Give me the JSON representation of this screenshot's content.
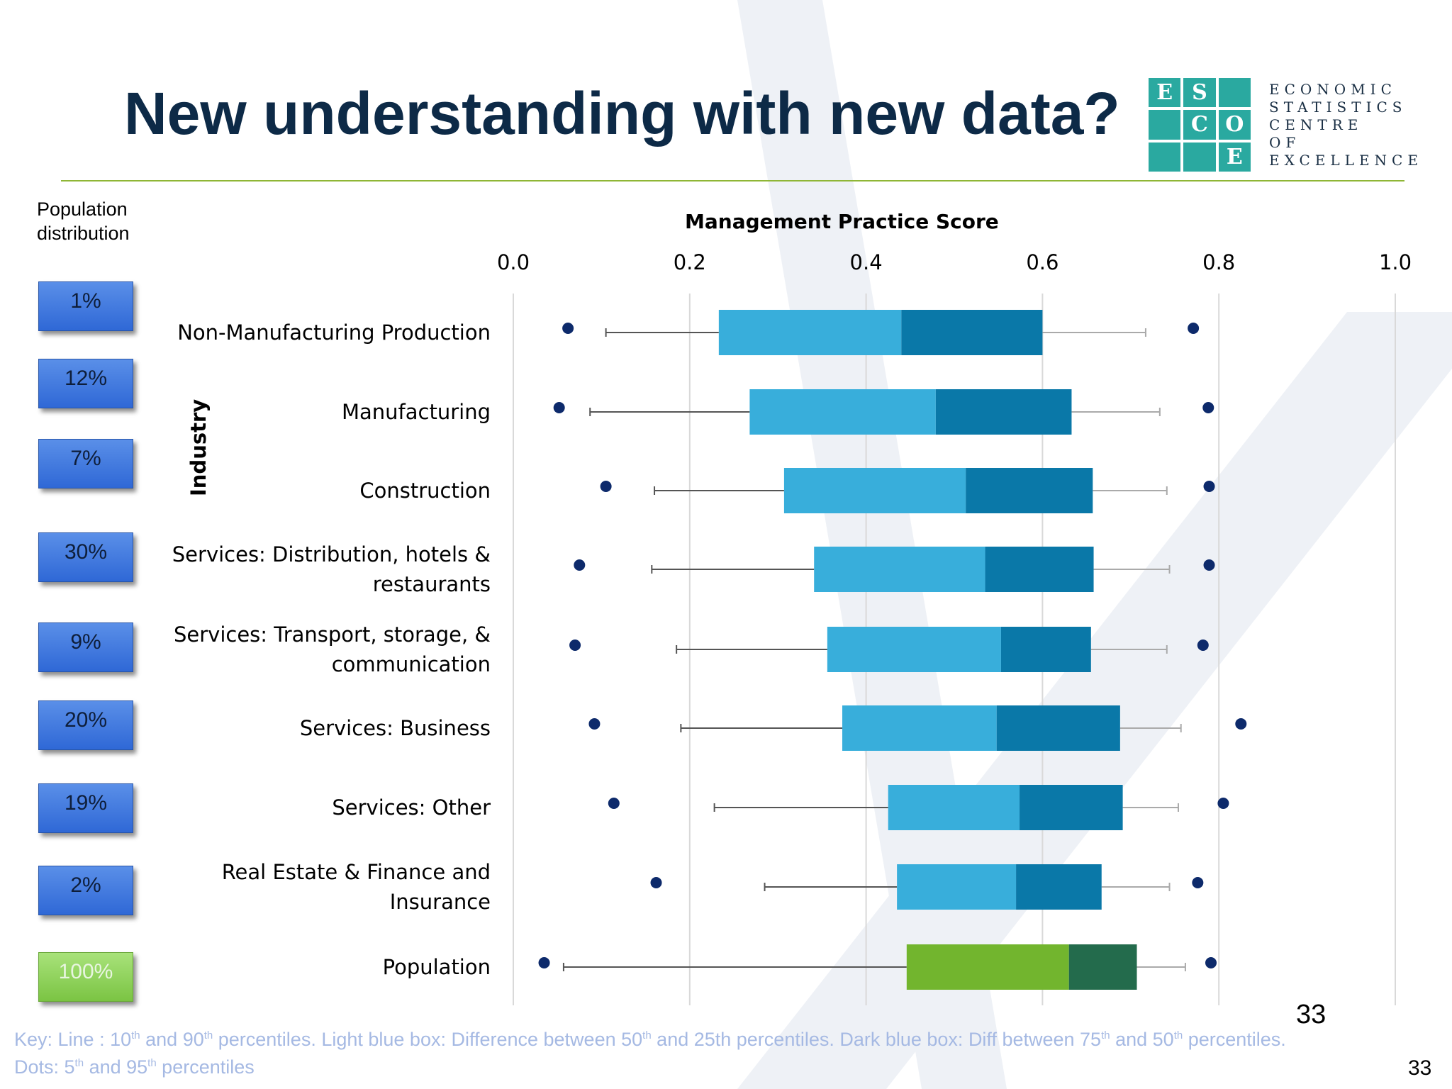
{
  "slide": {
    "title": "New understanding with new data?",
    "page_number": "33",
    "page_number_corner": "33"
  },
  "logo": {
    "letters": [
      "E",
      "S",
      "",
      "",
      "C",
      "O",
      "",
      "",
      "E"
    ],
    "lines": [
      "ECONOMIC",
      "STATISTICS",
      "CENTRE",
      "OF",
      "EXCELLENCE"
    ]
  },
  "population": {
    "title_line1": "Population",
    "title_line2": "distribution",
    "badges": [
      "1%",
      "12%",
      "7%",
      "30%",
      "9%",
      "20%",
      "19%",
      "2%",
      "100%"
    ]
  },
  "key": {
    "line1": {
      "p1": "Key: Line : 10",
      "s1": "th",
      "p2": " and 90",
      "s2": "th",
      "p3": " percentiles. Light blue box: Difference between 50",
      "s3": "th",
      "p4": " and 25th percentiles. Dark blue box: Diff between 75",
      "s4": "th",
      "p5": " and 50",
      "s5": "th",
      "p6": " percentiles."
    },
    "line2": {
      "p1": "Dots: 5",
      "s1": "th",
      "p2": " and 95",
      "s2": "th",
      "p3": " percentiles"
    }
  },
  "colors": {
    "q25_50": "#38aedb",
    "q50_75": "#0a78a8",
    "pop_q25_50": "#72b52e",
    "pop_q50_75": "#236b4c",
    "dot": "#0d2a6b",
    "grid": "#d9d9d9"
  },
  "chart_data": {
    "type": "box",
    "xlabel": "Management Practice Score",
    "ylabel": "Industry",
    "xlim": [
      0,
      1
    ],
    "xticks": [
      "0.0",
      "0.2",
      "0.4",
      "0.6",
      "0.8",
      "1.0"
    ],
    "grid": true,
    "categories": [
      "Non-Manufacturing Production",
      "Manufacturing",
      "Construction",
      "Services: Distribution, hotels & restaurants",
      "Services: Transport, storage, & communication",
      "Services: Business",
      "Services: Other",
      "Real Estate & Finance and Insurance",
      "Population"
    ],
    "category_lines": [
      [
        "Non-Manufacturing Production"
      ],
      [
        "Manufacturing"
      ],
      [
        "Construction"
      ],
      [
        "Services: Distribution, hotels &",
        "restaurants"
      ],
      [
        "Services: Transport, storage, &",
        "communication"
      ],
      [
        "Services: Business"
      ],
      [
        "Services: Other"
      ],
      [
        "Real Estate & Finance and",
        "Insurance"
      ],
      [
        "Population"
      ]
    ],
    "p5": [
      0.062,
      0.052,
      0.105,
      0.075,
      0.07,
      0.092,
      0.114,
      0.162,
      0.035
    ],
    "p10": [
      0.105,
      0.087,
      0.16,
      0.157,
      0.185,
      0.19,
      0.228,
      0.285,
      0.057
    ],
    "p25": [
      0.233,
      0.268,
      0.307,
      0.341,
      0.356,
      0.373,
      0.425,
      0.435,
      0.446
    ],
    "p50": [
      0.44,
      0.479,
      0.513,
      0.535,
      0.553,
      0.548,
      0.574,
      0.57,
      0.63
    ],
    "p75": [
      0.6,
      0.633,
      0.657,
      0.658,
      0.655,
      0.688,
      0.691,
      0.667,
      0.707
    ],
    "p90": [
      0.717,
      0.733,
      0.741,
      0.744,
      0.741,
      0.757,
      0.754,
      0.744,
      0.762
    ],
    "p95": [
      0.771,
      0.788,
      0.789,
      0.789,
      0.782,
      0.825,
      0.805,
      0.776,
      0.791
    ]
  }
}
